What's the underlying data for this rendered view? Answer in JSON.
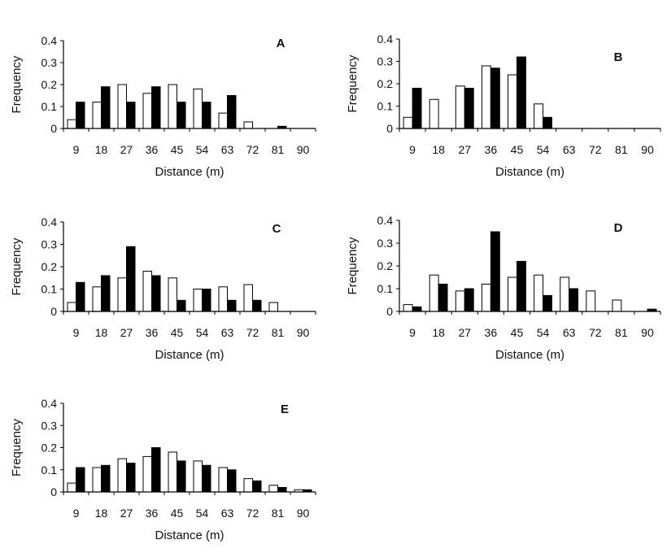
{
  "chart_data": [
    {
      "type": "bar",
      "title": "A",
      "categories": [
        "9",
        "18",
        "27",
        "36",
        "45",
        "54",
        "63",
        "72",
        "81",
        "90"
      ],
      "series": [
        {
          "name": "open bars",
          "fill": "#ffffff",
          "values": [
            0.04,
            0.12,
            0.2,
            0.16,
            0.2,
            0.18,
            0.07,
            0.03,
            0.0,
            0.0
          ]
        },
        {
          "name": "filled bars",
          "fill": "#000000",
          "values": [
            0.12,
            0.19,
            0.12,
            0.19,
            0.12,
            0.12,
            0.15,
            0.0,
            0.01,
            0.0
          ]
        }
      ],
      "ylim": [
        0,
        0.4
      ],
      "yticks": [
        "0",
        "0.1",
        "0.2",
        "0.3",
        "0.4"
      ],
      "xlabel": "Distance (m)",
      "ylabel": "Frequency"
    },
    {
      "type": "bar",
      "title": "B",
      "categories": [
        "9",
        "18",
        "27",
        "36",
        "45",
        "54",
        "63",
        "72",
        "81",
        "90"
      ],
      "series": [
        {
          "name": "open bars",
          "fill": "#ffffff",
          "values": [
            0.05,
            0.13,
            0.19,
            0.28,
            0.24,
            0.11,
            0.0,
            0.0,
            0.0,
            0.0
          ]
        },
        {
          "name": "filled bars",
          "fill": "#000000",
          "values": [
            0.18,
            0.0,
            0.18,
            0.27,
            0.32,
            0.05,
            0.0,
            0.0,
            0.0,
            0.0
          ]
        }
      ],
      "ylim": [
        0,
        0.4
      ],
      "yticks": [
        "0",
        "0.1",
        "0.2",
        "0.3",
        "0.4"
      ],
      "xlabel": "Distance (m)",
      "ylabel": "Frequency"
    },
    {
      "type": "bar",
      "title": "C",
      "categories": [
        "9",
        "18",
        "27",
        "36",
        "45",
        "54",
        "63",
        "72",
        "81",
        "90"
      ],
      "series": [
        {
          "name": "open bars",
          "fill": "#ffffff",
          "values": [
            0.04,
            0.11,
            0.15,
            0.18,
            0.15,
            0.1,
            0.11,
            0.12,
            0.04,
            0.0
          ]
        },
        {
          "name": "filled bars",
          "fill": "#000000",
          "values": [
            0.13,
            0.16,
            0.29,
            0.16,
            0.05,
            0.1,
            0.05,
            0.05,
            0.0,
            0.0
          ]
        }
      ],
      "ylim": [
        0,
        0.4
      ],
      "yticks": [
        "0",
        "0.1",
        "0.2",
        "0.3",
        "0.4"
      ],
      "xlabel": "Distance (m)",
      "ylabel": "Frequency"
    },
    {
      "type": "bar",
      "title": "D",
      "categories": [
        "9",
        "18",
        "27",
        "36",
        "45",
        "54",
        "63",
        "72",
        "81",
        "90"
      ],
      "series": [
        {
          "name": "open bars",
          "fill": "#ffffff",
          "values": [
            0.03,
            0.16,
            0.09,
            0.12,
            0.15,
            0.16,
            0.15,
            0.09,
            0.05,
            0.0
          ]
        },
        {
          "name": "filled bars",
          "fill": "#000000",
          "values": [
            0.02,
            0.12,
            0.1,
            0.35,
            0.22,
            0.07,
            0.1,
            0.0,
            0.0,
            0.01
          ]
        }
      ],
      "ylim": [
        0,
        0.4
      ],
      "yticks": [
        "0",
        "0.1",
        "0.2",
        "0.3",
        "0.4"
      ],
      "xlabel": "Distance (m)",
      "ylabel": "Frequency"
    },
    {
      "type": "bar",
      "title": "E",
      "categories": [
        "9",
        "18",
        "27",
        "36",
        "45",
        "54",
        "63",
        "72",
        "81",
        "90"
      ],
      "series": [
        {
          "name": "open bars",
          "fill": "#ffffff",
          "values": [
            0.04,
            0.11,
            0.15,
            0.16,
            0.18,
            0.14,
            0.11,
            0.06,
            0.03,
            0.01
          ]
        },
        {
          "name": "filled bars",
          "fill": "#000000",
          "values": [
            0.11,
            0.12,
            0.13,
            0.2,
            0.14,
            0.12,
            0.1,
            0.05,
            0.02,
            0.01
          ]
        }
      ],
      "ylim": [
        0,
        0.4
      ],
      "yticks": [
        "0",
        "0.1",
        "0.2",
        "0.3",
        "0.4"
      ],
      "xlabel": "Distance (m)",
      "ylabel": "Frequency"
    }
  ]
}
